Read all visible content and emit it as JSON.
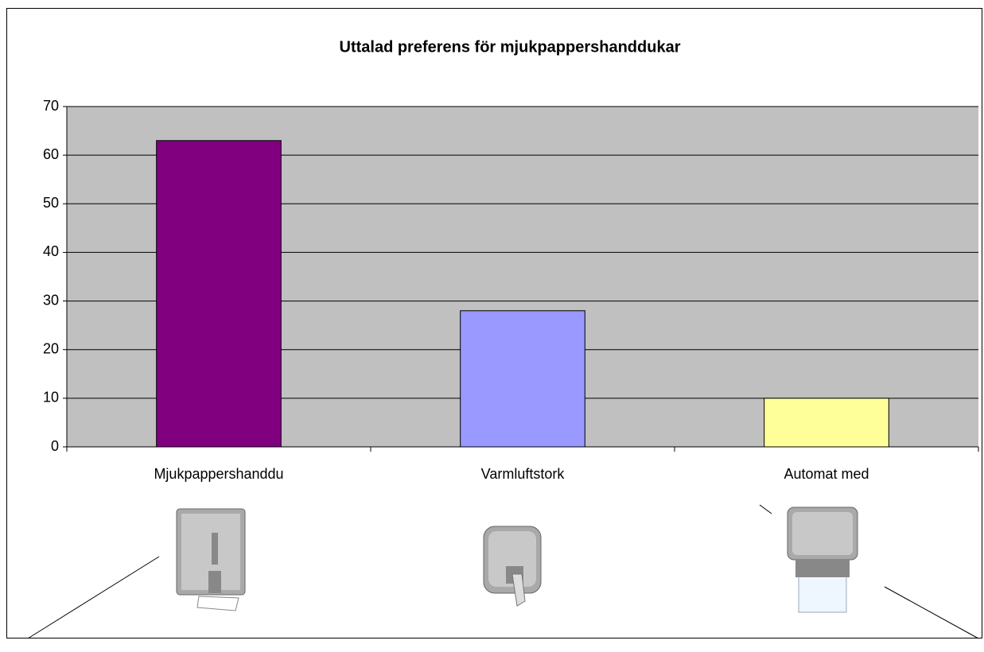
{
  "chart_data": {
    "type": "bar",
    "title": "Uttalad preferens för mjukpappershanddukar",
    "categories": [
      "Mjukpappershanddu",
      "Varmluftstork",
      "Automat med"
    ],
    "values": [
      63,
      28,
      10
    ],
    "colors": [
      "#800080",
      "#9999ff",
      "#ffff99"
    ],
    "ylim": [
      0,
      70
    ],
    "yticks": [
      0,
      10,
      20,
      30,
      40,
      50,
      60,
      70
    ],
    "grid": true
  }
}
